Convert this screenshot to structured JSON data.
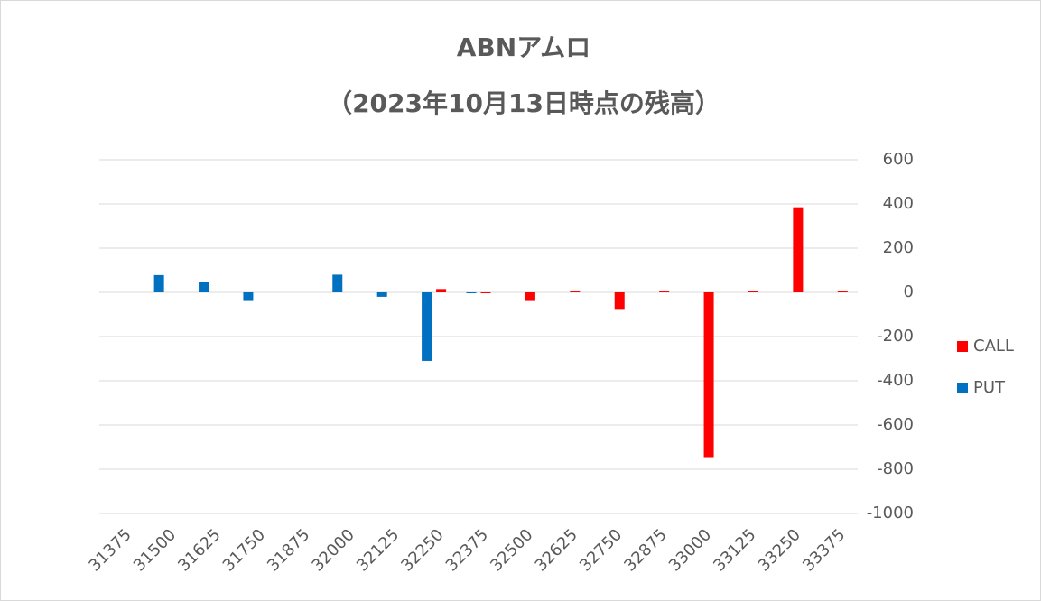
{
  "chart_data": {
    "type": "bar",
    "title": "ABNアムロ",
    "subtitle": "（2023年10月13日時点の残高）",
    "categories": [
      "31375",
      "31500",
      "31625",
      "31750",
      "31875",
      "32000",
      "32125",
      "32250",
      "32375",
      "32500",
      "32625",
      "32750",
      "32875",
      "33000",
      "33125",
      "33250",
      "33375"
    ],
    "series": [
      {
        "name": "CALL",
        "color": "#ff0000",
        "values": [
          null,
          null,
          null,
          null,
          null,
          null,
          null,
          15,
          -3,
          -35,
          5,
          -75,
          5,
          -745,
          5,
          385,
          5
        ]
      },
      {
        "name": "PUT",
        "color": "#0070c0",
        "values": [
          null,
          78,
          45,
          -35,
          null,
          80,
          -20,
          -310,
          -3,
          null,
          null,
          null,
          null,
          null,
          null,
          null,
          null
        ]
      }
    ],
    "ylim": [
      -1000,
      600
    ],
    "yticks": [
      -1000,
      -800,
      -600,
      -400,
      -200,
      0,
      200,
      400,
      600
    ],
    "grid": true,
    "legend": "right"
  }
}
